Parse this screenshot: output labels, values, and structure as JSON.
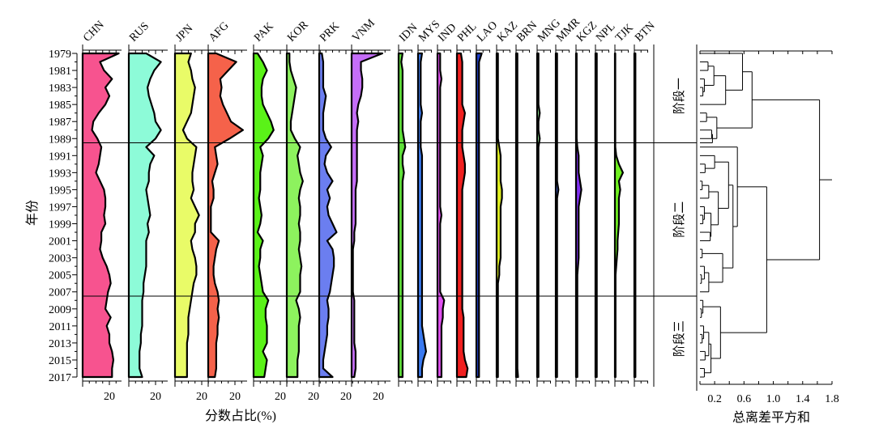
{
  "chart_data": {
    "type": "area",
    "subtype": "stratigraphic-profile-with-dendrogram",
    "y_axis_label": "年份",
    "x_axis_label": "分数占比(%)",
    "years": [
      1979,
      1980,
      1981,
      1982,
      1983,
      1984,
      1985,
      1986,
      1987,
      1988,
      1989,
      1990,
      1991,
      1992,
      1993,
      1994,
      1995,
      1996,
      1997,
      1998,
      1999,
      2000,
      2001,
      2002,
      2003,
      2004,
      2005,
      2006,
      2007,
      2008,
      2009,
      2010,
      2011,
      2012,
      2013,
      2014,
      2015,
      2016,
      2017
    ],
    "y_tick_labels": [
      "1979",
      "1981",
      "1983",
      "1985",
      "1987",
      "1989",
      "1991",
      "1993",
      "1995",
      "1997",
      "1999",
      "2001",
      "2003",
      "2005",
      "2007",
      "2009",
      "2011",
      "2013",
      "2015",
      "2017"
    ],
    "x_tick_label": "20",
    "series": [
      {
        "name": "CHN",
        "color": "#f7538f",
        "tick": true,
        "values": [
          27,
          13,
          16,
          22,
          17,
          20,
          17,
          12,
          8,
          7,
          11,
          14,
          13,
          12,
          10,
          13,
          16,
          17,
          17,
          16,
          17,
          14,
          14,
          13,
          15,
          18,
          20,
          21,
          19,
          18,
          17,
          21,
          18,
          20,
          20,
          22,
          23,
          22,
          22
        ]
      },
      {
        "name": "RUS",
        "color": "#8dfbd8",
        "tick": true,
        "values": [
          13,
          24,
          19,
          16,
          14,
          15,
          17,
          19,
          20,
          24,
          20,
          13,
          19,
          16,
          15,
          15,
          13,
          14,
          15,
          16,
          14,
          15,
          13,
          13,
          13,
          13,
          12,
          11,
          11,
          10,
          10,
          10,
          10,
          9,
          9,
          8,
          8,
          8,
          10
        ]
      },
      {
        "name": "JPN",
        "color": "#e9fb68",
        "tick": true,
        "values": [
          12,
          10,
          12,
          13,
          15,
          14,
          13,
          12,
          9,
          6,
          9,
          16,
          15,
          14,
          13,
          13,
          14,
          12,
          15,
          18,
          15,
          15,
          12,
          13,
          15,
          16,
          16,
          14,
          13,
          12,
          11,
          10,
          10,
          10,
          9,
          9,
          9,
          9,
          9
        ]
      },
      {
        "name": "AFG",
        "color": "#f5624a",
        "tick": true,
        "values": [
          6,
          21,
          15,
          9,
          10,
          9,
          11,
          14,
          17,
          26,
          16,
          5,
          6,
          7,
          5,
          3,
          4,
          4,
          2,
          2,
          2,
          2,
          8,
          6,
          5,
          4,
          4,
          5,
          7,
          8,
          7,
          8,
          7,
          7,
          6,
          6,
          6,
          6,
          5
        ]
      },
      {
        "name": "PAK",
        "color": "#5af218",
        "tick": true,
        "values": [
          3,
          7,
          10,
          7,
          6,
          6,
          7,
          10,
          13,
          15,
          11,
          5,
          7,
          6,
          5,
          5,
          5,
          4,
          5,
          6,
          5,
          3,
          7,
          5,
          5,
          4,
          5,
          6,
          7,
          11,
          9,
          9,
          10,
          10,
          10,
          7,
          10,
          9,
          8
        ]
      },
      {
        "name": "KOR",
        "color": "#8df25e",
        "tick": true,
        "values": [
          2,
          2,
          3,
          5,
          7,
          6,
          5,
          4,
          3,
          3,
          6,
          10,
          8,
          9,
          10,
          12,
          10,
          9,
          10,
          10,
          9,
          10,
          10,
          9,
          10,
          11,
          10,
          10,
          10,
          7,
          9,
          10,
          9,
          9,
          9,
          9,
          8,
          8,
          8
        ]
      },
      {
        "name": "PRK",
        "color": "#6b7ef0",
        "tick": true,
        "values": [
          2,
          3,
          3,
          3,
          3,
          5,
          4,
          3,
          3,
          3,
          5,
          9,
          5,
          4,
          6,
          10,
          6,
          8,
          6,
          7,
          10,
          13,
          6,
          10,
          11,
          11,
          10,
          9,
          8,
          6,
          7,
          7,
          6,
          6,
          5,
          4,
          3,
          3,
          10
        ]
      },
      {
        "name": "VNM",
        "color": "#c56ef8",
        "tick": true,
        "values": [
          23,
          7,
          7,
          8,
          8,
          7,
          5,
          4,
          5,
          4,
          4,
          4,
          4,
          4,
          4,
          4,
          3,
          3,
          3,
          3,
          3,
          2,
          2,
          1,
          1,
          1,
          1,
          1,
          1,
          2,
          2,
          2,
          2,
          2,
          2,
          3,
          3,
          3,
          2
        ]
      },
      {
        "name": "IDN",
        "color": "#5fe03a",
        "tick": false,
        "values": [
          3,
          2,
          3,
          3,
          3,
          3,
          3,
          3,
          3,
          3,
          4,
          5,
          3,
          3,
          4,
          3,
          3,
          3,
          3,
          3,
          3,
          3,
          3,
          3,
          3,
          3,
          3,
          3,
          3,
          3,
          3,
          3,
          3,
          3,
          3,
          3,
          3,
          3,
          3
        ]
      },
      {
        "name": "MYS",
        "color": "#3a7af0",
        "tick": false,
        "values": [
          3,
          2,
          2,
          2,
          2,
          2,
          2,
          3,
          2,
          2,
          2,
          2,
          3,
          3,
          3,
          3,
          3,
          3,
          3,
          3,
          3,
          3,
          3,
          3,
          3,
          3,
          3,
          3,
          3,
          3,
          3,
          3,
          3,
          4,
          5,
          6,
          4,
          3,
          3
        ]
      },
      {
        "name": "IND",
        "color": "#e050f0",
        "tick": false,
        "values": [
          2,
          2,
          2,
          3,
          2,
          2,
          2,
          2,
          2,
          2,
          2,
          2,
          2,
          2,
          2,
          2,
          2,
          2,
          2,
          3,
          2,
          2,
          2,
          2,
          2,
          2,
          2,
          2,
          2,
          5,
          4,
          4,
          3,
          3,
          3,
          3,
          3,
          3,
          3
        ]
      },
      {
        "name": "PHL",
        "color": "#f02020",
        "tick": false,
        "values": [
          3,
          4,
          4,
          4,
          4,
          4,
          4,
          6,
          5,
          4,
          4,
          4,
          5,
          6,
          6,
          5,
          4,
          4,
          4,
          4,
          4,
          4,
          4,
          4,
          4,
          4,
          4,
          4,
          4,
          4,
          4,
          5,
          5,
          5,
          5,
          5,
          6,
          8,
          7
        ]
      },
      {
        "name": "LAO",
        "color": "#2040d0",
        "tick": false,
        "values": [
          4,
          2,
          2,
          2,
          2,
          2,
          2,
          2,
          2,
          2,
          2,
          2,
          2,
          2,
          2,
          2,
          2,
          2,
          2,
          2,
          2,
          2,
          2,
          2,
          2,
          2,
          2,
          2,
          2,
          2,
          2,
          2,
          2,
          2,
          2,
          2,
          2,
          2,
          2
        ]
      },
      {
        "name": "KAZ",
        "color": "#e0f020",
        "tick": false,
        "values": [
          1,
          1,
          1,
          1,
          1,
          1,
          1,
          1,
          1,
          1,
          1,
          2,
          3,
          3,
          3,
          3,
          4,
          4,
          3,
          3,
          3,
          3,
          3,
          3,
          3,
          2,
          2,
          1,
          1,
          1,
          1,
          1,
          1,
          1,
          1,
          1,
          1,
          1,
          1
        ]
      },
      {
        "name": "BRN",
        "color": "#203030",
        "tick": false,
        "values": [
          1,
          1,
          1,
          1,
          1,
          1,
          1,
          1,
          1,
          1,
          1,
          1,
          1,
          1,
          1,
          1,
          1,
          1,
          1,
          1,
          1,
          1,
          1,
          1,
          1,
          1,
          1,
          1,
          1,
          1,
          1,
          1,
          1,
          1,
          1,
          1,
          1,
          1,
          1.5
        ]
      },
      {
        "name": "MNG",
        "color": "#90e090",
        "tick": false,
        "values": [
          1,
          1,
          1,
          1,
          1,
          1,
          1,
          2,
          1,
          1,
          2,
          1,
          1,
          1,
          1,
          1,
          1,
          1,
          1,
          1,
          1,
          1,
          1,
          1,
          1,
          1,
          1,
          1,
          1,
          1,
          1,
          1,
          1,
          1,
          1,
          1,
          1,
          1,
          1
        ]
      },
      {
        "name": "MMR",
        "color": "#4060d0",
        "tick": false,
        "values": [
          1,
          1,
          1,
          1,
          1,
          1,
          1,
          1,
          1,
          1,
          1,
          1,
          1,
          1,
          1,
          1,
          2,
          1,
          1,
          1,
          1,
          1,
          1,
          1,
          1,
          1,
          1,
          1,
          1,
          1,
          1,
          1,
          1,
          1,
          1,
          1,
          1,
          1,
          1
        ]
      },
      {
        "name": "KGZ",
        "color": "#8030f0",
        "tick": false,
        "values": [
          0.5,
          0.5,
          0.5,
          0.5,
          0.5,
          0.5,
          0.5,
          0.5,
          0.5,
          0.5,
          0.5,
          1,
          2,
          2,
          2,
          3,
          4,
          3,
          2,
          2,
          2,
          2,
          2,
          2,
          2,
          1.5,
          1,
          1,
          1,
          1,
          1,
          1,
          1,
          1,
          1,
          1,
          1,
          1,
          1
        ]
      },
      {
        "name": "NPL",
        "color": "#606060",
        "tick": false,
        "values": [
          1,
          1,
          1,
          1,
          1,
          1,
          1,
          1,
          1,
          1,
          1,
          1,
          1,
          1,
          1,
          1,
          1,
          1,
          1,
          1,
          1,
          1,
          1,
          1,
          1,
          1,
          1,
          1,
          1,
          1,
          1,
          1,
          1,
          1,
          1,
          1,
          1,
          1,
          1
        ]
      },
      {
        "name": "TJK",
        "color": "#70f020",
        "tick": false,
        "values": [
          0.3,
          0.3,
          0.3,
          0.3,
          0.3,
          0.3,
          0.3,
          0.3,
          0.3,
          0.3,
          0.3,
          0.3,
          1,
          3,
          6,
          3,
          4,
          3,
          3,
          3,
          3,
          2.5,
          2,
          2,
          1.5,
          1,
          0.5,
          0.5,
          0.5,
          0.5,
          0.5,
          0.5,
          0.5,
          0.5,
          0.5,
          0.5,
          0.5,
          0.5,
          0.5
        ]
      },
      {
        "name": "BTN",
        "color": "#303030",
        "tick": false,
        "values": [
          0.8,
          0.8,
          0.8,
          0.8,
          0.8,
          0.8,
          0.8,
          0.8,
          0.8,
          0.8,
          0.8,
          0.8,
          0.8,
          0.8,
          0.8,
          0.8,
          0.8,
          0.8,
          0.8,
          0.8,
          0.8,
          0.8,
          0.8,
          0.8,
          0.8,
          0.8,
          0.8,
          0.8,
          0.8,
          0.8,
          0.8,
          0.8,
          0.8,
          0.8,
          0.8,
          0.8,
          0.8,
          0.8,
          0.8
        ]
      }
    ],
    "stages": [
      {
        "label": "阶段一",
        "from": 1979,
        "to": 1989
      },
      {
        "label": "阶段二",
        "from": 1990,
        "to": 2007
      },
      {
        "label": "阶段三",
        "from": 2008,
        "to": 2017
      }
    ],
    "dendrogram": {
      "x_axis_label": "总离差平方和",
      "x_range": [
        0,
        1.8
      ],
      "x_tick_labels": [
        "0.2",
        "0.6",
        "1.0",
        "1.4",
        "1.8"
      ],
      "tree": [
        1.63,
        [
          0.71,
          [
            0.58,
            1979,
            [
              0.35,
              [
                0.19,
                [
                  0.11,
                  1980,
                  1981
                ],
                [
                  0.06,
                  1982,
                  [
                    0.04,
                    1983,
                    1984
                  ]
                ]
              ],
              1985
            ]
          ],
          [
            0.23,
            [
              0.09,
              1986,
              1987
            ],
            [
              0.17,
              [
                0.16,
                1988,
                1989
              ],
              1989.5
            ]
          ]
        ],
        [
          0.91,
          [
            0.51,
            1990,
            [
              0.45,
              [
                0.39,
                [
                  0.2,
                  1991,
                  [
                    0.07,
                    1992,
                    1993
                  ]
                ],
                [
                  0.25,
                  [
                    0.12,
                    [
                      0.03,
                      1994,
                      1995
                    ],
                    1996
                  ],
                  [
                    0.15,
                    [
                      0.06,
                      1997,
                      [
                        0.04,
                        1998,
                        1999
                      ]
                    ],
                    [
                      0.14,
                      2000,
                      2001
                    ]
                  ]
                ]
              ],
              [
                0.31,
                [
                  0.03,
                  2002,
                  2003
                ],
                [
                  0.12,
                  [
                    0.06,
                    2004,
                    [
                      0.02,
                      2005,
                      2006
                    ]
                  ],
                  2007
                ]
              ]
            ]
          ],
          [
            0.28,
            [
              0.04,
              2008,
              [
                0.02,
                2009,
                2010
              ]
            ],
            [
              0.15,
              [
                0.12,
                [
                  0.05,
                  2011,
                  [
                    0.03,
                    2012,
                    2013
                  ]
                ],
                [
                  0.07,
                  2014,
                  2015
                ]
              ],
              [
                0.06,
                2016,
                2017
              ]
            ]
          ]
        ]
      ]
    }
  }
}
